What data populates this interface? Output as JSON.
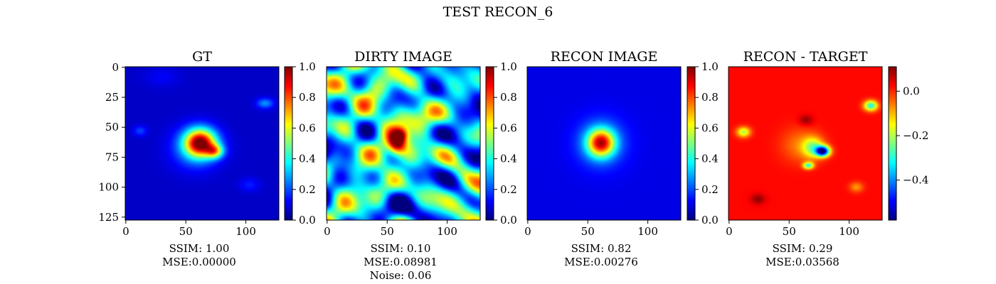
{
  "figure": {
    "title": "TEST RECON_6"
  },
  "chart_data": [
    {
      "type": "heatmap",
      "title": "GT",
      "xlim": [
        0,
        127
      ],
      "ylim": [
        127,
        0
      ],
      "xticks": [
        0,
        50,
        100
      ],
      "yticks": [
        0,
        25,
        50,
        75,
        100,
        125
      ],
      "colorbar": {
        "range": [
          0.0,
          1.0
        ],
        "ticks": [
          "0.0",
          "0.2",
          "0.4",
          "0.6",
          "0.8",
          "1.0"
        ],
        "tick_values": [
          0,
          0.2,
          0.4,
          0.6,
          0.8,
          1.0
        ]
      },
      "annotation": [
        "SSIM: 1.00",
        "MSE:0.00000"
      ],
      "base_value": 0.07,
      "blobs": [
        {
          "x": 62,
          "y": 63,
          "sx": 9,
          "sy": 8,
          "v": 0.85
        },
        {
          "x": 74,
          "y": 70,
          "sx": 5,
          "sy": 4,
          "v": 0.45
        },
        {
          "x": 58,
          "y": 68,
          "sx": 14,
          "sy": 12,
          "v": 0.18
        },
        {
          "x": 116,
          "y": 30,
          "sx": 5,
          "sy": 3,
          "v": 0.2
        },
        {
          "x": 12,
          "y": 53,
          "sx": 4,
          "sy": 3,
          "v": 0.12
        },
        {
          "x": 103,
          "y": 98,
          "sx": 6,
          "sy": 4,
          "v": 0.08
        },
        {
          "x": 30,
          "y": 8,
          "sx": 10,
          "sy": 6,
          "v": 0.05
        }
      ]
    },
    {
      "type": "heatmap",
      "title": "DIRTY IMAGE",
      "xlim": [
        0,
        127
      ],
      "ylim": [
        127,
        0
      ],
      "xticks": [
        0,
        50,
        100
      ],
      "yticks": [],
      "colorbar": {
        "range": [
          0.0,
          1.0
        ],
        "ticks": [
          "0.0",
          "0.2",
          "0.4",
          "0.6",
          "0.8",
          "1.0"
        ],
        "tick_values": [
          0,
          0.2,
          0.4,
          0.6,
          0.8,
          1.0
        ]
      },
      "annotation": [
        "SSIM: 0.10",
        "MSE:0.08981",
        "Noise: 0.06"
      ],
      "base_value": 0.35,
      "noise_amplitude": 0.45,
      "noise_seed": 11,
      "blobs": [
        {
          "x": 58,
          "y": 62,
          "sx": 5,
          "sy": 7,
          "v": 0.5
        },
        {
          "x": 62,
          "y": 56,
          "sx": 4,
          "sy": 4,
          "v": 0.25
        }
      ]
    },
    {
      "type": "heatmap",
      "title": "RECON IMAGE",
      "xlim": [
        0,
        127
      ],
      "ylim": [
        127,
        0
      ],
      "xticks": [
        0,
        50,
        100
      ],
      "yticks": [],
      "colorbar": {
        "range": [
          0.0,
          1.0
        ],
        "ticks": [
          "0.0",
          "0.2",
          "0.4",
          "0.6",
          "0.8",
          "1.0"
        ],
        "tick_values": [
          0,
          0.2,
          0.4,
          0.6,
          0.8,
          1.0
        ]
      },
      "annotation": [
        "SSIM: 0.82",
        "MSE:0.00276"
      ],
      "base_value": 0.1,
      "blobs": [
        {
          "x": 61,
          "y": 63,
          "sx": 8,
          "sy": 8,
          "v": 0.72
        },
        {
          "x": 61,
          "y": 63,
          "sx": 15,
          "sy": 15,
          "v": 0.15
        }
      ]
    },
    {
      "type": "heatmap",
      "title": "RECON - TARGET",
      "xlim": [
        0,
        127
      ],
      "ylim": [
        127,
        0
      ],
      "xticks": [
        0,
        50,
        100
      ],
      "yticks": [],
      "colorbar": {
        "range": [
          -0.58,
          0.11
        ],
        "ticks": [
          "0.0",
          "−0.2",
          "−0.4"
        ],
        "tick_values": [
          0.0,
          -0.2,
          -0.4
        ]
      },
      "annotation": [
        "SSIM: 0.29",
        "MSE:0.03568"
      ],
      "base_value": 0.02,
      "blobs": [
        {
          "x": 78,
          "y": 70,
          "sx": 4,
          "sy": 3,
          "v": -0.58
        },
        {
          "x": 70,
          "y": 67,
          "sx": 6,
          "sy": 6,
          "v": -0.22
        },
        {
          "x": 66,
          "y": 82,
          "sx": 3,
          "sy": 2,
          "v": -0.3
        },
        {
          "x": 118,
          "y": 32,
          "sx": 4,
          "sy": 3,
          "v": -0.32
        },
        {
          "x": 12,
          "y": 54,
          "sx": 4,
          "sy": 3,
          "v": -0.22
        },
        {
          "x": 59,
          "y": 65,
          "sx": 11,
          "sy": 10,
          "v": -0.08
        },
        {
          "x": 106,
          "y": 100,
          "sx": 4,
          "sy": 3,
          "v": -0.1
        },
        {
          "x": 64,
          "y": 44,
          "sx": 4,
          "sy": 3,
          "v": 0.08
        },
        {
          "x": 24,
          "y": 110,
          "sx": 4,
          "sy": 3,
          "v": 0.08
        }
      ]
    }
  ],
  "colormap_stops": [
    "#00007f",
    "#0000ff",
    "#007fff",
    "#00ffff",
    "#7fff7f",
    "#ffff00",
    "#ff7f00",
    "#ff0000",
    "#7f0000"
  ]
}
